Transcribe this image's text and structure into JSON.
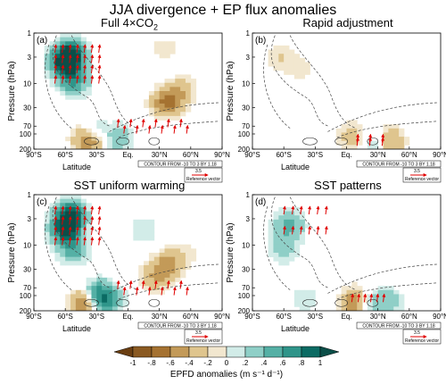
{
  "title": "JJA divergence + EP flux anomalies",
  "colors": {
    "teal_dark": "#0b6b63",
    "teal": "#2f958a",
    "teal_light": "#8fcfc7",
    "teal_pale": "#d2ece8",
    "tan_pale": "#f2e7cf",
    "tan": "#dfc58e",
    "brown": "#a57231",
    "brown_dark": "#6b3f12",
    "arrow": "#e00000"
  },
  "chart_data": [
    {
      "type": "contour",
      "panel_label": "(a)",
      "title": "Full 4×CO",
      "title_sub": "2",
      "ylabel": "Pressure (hPa)",
      "xlabel": "Latitude",
      "x_ticks": [
        "90°S",
        "60°S",
        "30°S",
        "Eq.",
        "30°N",
        "60°N",
        "90°N"
      ],
      "x_range": [
        -90,
        90
      ],
      "y_ticks": [
        "1",
        "3",
        "10",
        "30",
        "70",
        "100",
        "200"
      ],
      "y_values": [
        1,
        3,
        10,
        30,
        70,
        100,
        200
      ],
      "y_scale": "log",
      "y_range": [
        1,
        200
      ],
      "contour_note": "CONTOUR FROM -10 TO 3 BY 1.18",
      "reference_vector_value": "3.5",
      "reference_vector_label": "Reference vector",
      "field_features": [
        {
          "lat": -55,
          "p": 2.5,
          "value": 0.9
        },
        {
          "lat": -60,
          "p": 4,
          "value": 1.0
        },
        {
          "lat": -52,
          "p": 9,
          "value": 0.6
        },
        {
          "lat": -30,
          "p": 100,
          "value": 0.8
        },
        {
          "lat": -12,
          "p": 120,
          "value": 0.5
        },
        {
          "lat": -38,
          "p": 130,
          "value": -0.8
        },
        {
          "lat": -24,
          "p": 110,
          "value": -0.6
        },
        {
          "lat": 35,
          "p": 25,
          "value": -0.5
        },
        {
          "lat": 45,
          "p": 18,
          "value": -0.35
        },
        {
          "lat": 35,
          "p": 2,
          "value": -0.15
        },
        {
          "lat": 55,
          "p": 12,
          "value": -0.15
        }
      ]
    },
    {
      "type": "contour",
      "panel_label": "(b)",
      "title": "Rapid adjustment",
      "title_sub": "",
      "ylabel": "Pressure (hPa)",
      "xlabel": "Latitude",
      "x_ticks": [
        "90°S",
        "60°S",
        "30°S",
        "Eq.",
        "30°N",
        "60°N",
        "90°N"
      ],
      "x_range": [
        -90,
        90
      ],
      "y_ticks": [
        "1",
        "3",
        "10",
        "30",
        "70",
        "100",
        "200"
      ],
      "y_values": [
        1,
        3,
        10,
        30,
        70,
        100,
        200
      ],
      "y_scale": "log",
      "y_range": [
        1,
        200
      ],
      "contour_note": "CONTOUR FROM -10 TO 3 BY 1.18",
      "reference_vector_value": "3.5",
      "reference_vector_label": "Reference vector",
      "field_features": [
        {
          "lat": 40,
          "p": 140,
          "value": -0.6
        },
        {
          "lat": 30,
          "p": 150,
          "value": 0.4
        },
        {
          "lat": 5,
          "p": 110,
          "value": -0.3
        },
        {
          "lat": -65,
          "p": 3,
          "value": -0.2
        },
        {
          "lat": -45,
          "p": 5,
          "value": -0.15
        }
      ]
    },
    {
      "type": "contour",
      "panel_label": "(c)",
      "title": "SST uniform warming",
      "title_sub": "",
      "ylabel": "Pressure (hPa)",
      "xlabel": "Latitude",
      "x_ticks": [
        "90°S",
        "60°S",
        "30°S",
        "Eq.",
        "30°N",
        "60°N",
        "90°N"
      ],
      "x_range": [
        -90,
        90
      ],
      "y_ticks": [
        "1",
        "3",
        "10",
        "30",
        "70",
        "100",
        "200"
      ],
      "y_values": [
        1,
        3,
        10,
        30,
        70,
        100,
        200
      ],
      "y_scale": "log",
      "y_range": [
        1,
        200
      ],
      "contour_note": "CONTOUR FROM -10 TO 3 BY 1.18",
      "reference_vector_value": "3.5",
      "reference_vector_label": "Reference vector",
      "field_features": [
        {
          "lat": -55,
          "p": 2.5,
          "value": 1.0
        },
        {
          "lat": -60,
          "p": 5,
          "value": 0.9
        },
        {
          "lat": -52,
          "p": 12,
          "value": 0.5
        },
        {
          "lat": -32,
          "p": 100,
          "value": 0.8
        },
        {
          "lat": -40,
          "p": 130,
          "value": -0.9
        },
        {
          "lat": -20,
          "p": 120,
          "value": 0.6
        },
        {
          "lat": 38,
          "p": 25,
          "value": -0.5
        },
        {
          "lat": 25,
          "p": 45,
          "value": -0.35
        },
        {
          "lat": 15,
          "p": 5,
          "value": 0.2
        },
        {
          "lat": 55,
          "p": 15,
          "value": -0.15
        }
      ]
    },
    {
      "type": "contour",
      "panel_label": "(d)",
      "title": "SST patterns",
      "title_sub": "",
      "ylabel": "Pressure (hPa)",
      "xlabel": "Latitude",
      "x_ticks": [
        "90°S",
        "60°S",
        "30°S",
        "Eq.",
        "30°N",
        "60°N",
        "90°N"
      ],
      "x_range": [
        -90,
        90
      ],
      "y_ticks": [
        "1",
        "3",
        "10",
        "30",
        "70",
        "100",
        "200"
      ],
      "y_values": [
        1,
        3,
        10,
        30,
        70,
        100,
        200
      ],
      "y_scale": "log",
      "y_range": [
        1,
        200
      ],
      "contour_note": "CONTOUR FROM -10 TO 3 BY 1.18",
      "reference_vector_value": "3.5",
      "reference_vector_label": "Reference vector",
      "field_features": [
        {
          "lat": -55,
          "p": 4,
          "value": 0.5
        },
        {
          "lat": -60,
          "p": 12,
          "value": 0.3
        },
        {
          "lat": 10,
          "p": 140,
          "value": -0.8
        },
        {
          "lat": 20,
          "p": 150,
          "value": 0.5
        },
        {
          "lat": 40,
          "p": 130,
          "value": 0.3
        },
        {
          "lat": -40,
          "p": 120,
          "value": 0.2
        },
        {
          "lat": 25,
          "p": 30,
          "value": -0.1
        }
      ]
    }
  ],
  "colorbar": {
    "label": "EPFD anomalies (m s⁻¹ d⁻¹)",
    "ticks": [
      "-1",
      "-.8",
      "-.6",
      "-.4",
      "-.2",
      "0",
      ".2",
      ".4",
      ".6",
      ".8",
      "1"
    ],
    "colors": [
      "#6b3f12",
      "#8b5a22",
      "#a57231",
      "#c39a58",
      "#dfc58e",
      "#f2e7cf",
      "#d2ece8",
      "#8fcfc7",
      "#55b0a5",
      "#2f958a",
      "#0b6b63",
      "#0b4e48"
    ]
  }
}
